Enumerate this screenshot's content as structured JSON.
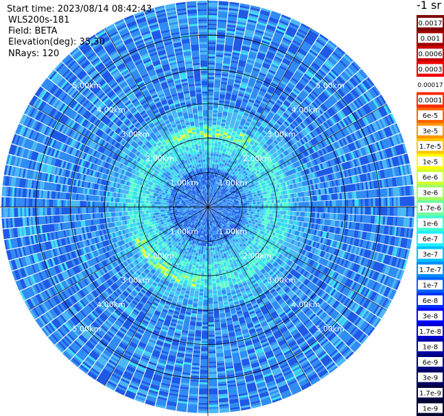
{
  "header": {
    "start_time": "Start time: 2023/08/14 08:42:43",
    "instrument": "WLS200s-181",
    "field": "Field: BETA",
    "elevation": "Elevation(deg): 35.30",
    "nrays": "NRays: 120"
  },
  "colorbar": {
    "unit_label": "-1 sr",
    "labels": [
      "0.0017",
      "0.001",
      "0.0006",
      "0.0003",
      "0.00017",
      "0.0001",
      "6e-5",
      "3e-5",
      "1.7e-5",
      "1e-5",
      "6e-6",
      "3e-6",
      "1.7e-6",
      "1e-6",
      "6e-7",
      "3e-7",
      "1.7e-7",
      "1e-7",
      "6e-8",
      "3e-8",
      "1.7e-8",
      "1e-8",
      "6e-9",
      "3e-9",
      "1.7e-9",
      "1e-9"
    ],
    "colors": [
      "#800000",
      "#a00000",
      "#c80000",
      "#f00000",
      "#ffffff",
      "#ff2800",
      "#ff6400",
      "#ff9600",
      "#ffc800",
      "#ffff00",
      "#d0ff30",
      "#a0ff60",
      "#70ffa0",
      "#40ffd0",
      "#20f0ff",
      "#00c0ff",
      "#0090ff",
      "#0060ff",
      "#0030ff",
      "#0000ff",
      "#0000d0",
      "#0000a0",
      "#000080",
      "#000060",
      "#000040",
      "#000030"
    ]
  },
  "chart_data": {
    "type": "heatmap",
    "projection": "polar",
    "field": "BETA",
    "elevation_deg": 35.3,
    "nrays": 120,
    "range_rings_km": [
      1,
      2,
      3,
      4,
      5
    ],
    "ring_labels": [
      "1.00km",
      "2.00km",
      "3.00km",
      "4.00km",
      "5.00km"
    ],
    "max_range_km": 6.0,
    "azimuth_spokes_deg": [
      0,
      30,
      60,
      90,
      120,
      150,
      180,
      210,
      240,
      270,
      300,
      330
    ],
    "colors": {
      "deep_blue": "#1e5ae6",
      "blue": "#2f8cf2",
      "light_blue": "#4ab8f5",
      "cyan": "#38e0f0",
      "aqua": "#58ffd0",
      "green": "#a0ff60",
      "yellow": "#ffff20",
      "white": "#ffffff",
      "grid": "#000000"
    }
  }
}
